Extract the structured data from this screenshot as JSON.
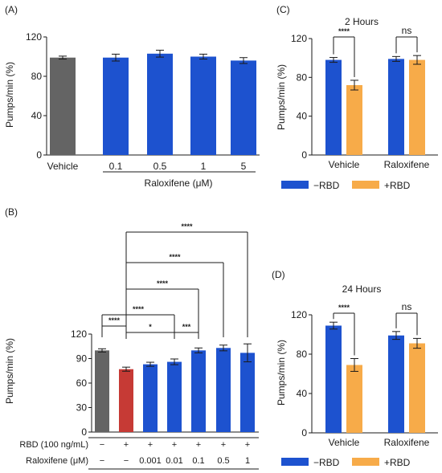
{
  "colors": {
    "vehicle_gray": "#646464",
    "rbd_red": "#c63a35",
    "blue": "#1d52cf",
    "orange": "#f7ab49",
    "axis": "#1a1a1a"
  },
  "chart_data": [
    {
      "id": "A",
      "panel_label": "(A)",
      "type": "bar",
      "ylabel": "Pumps/min (%)",
      "ylim": [
        0,
        120
      ],
      "yticks": [
        "0",
        "40",
        "80",
        "120"
      ],
      "categories": [
        "Vehicle",
        "0.1",
        "0.5",
        "1",
        "5"
      ],
      "values": [
        99,
        99,
        103,
        100,
        96
      ],
      "errors": [
        1.5,
        3.5,
        3.5,
        2.5,
        3
      ],
      "bar_colors": [
        "gray",
        "blue",
        "blue",
        "blue",
        "blue"
      ],
      "group_label": "Raloxifene (μM)"
    },
    {
      "id": "B",
      "panel_label": "(B)",
      "type": "bar",
      "ylabel": "Pumps/min (%)",
      "ylim": [
        0,
        120
      ],
      "yticks": [
        "0",
        "30",
        "60",
        "90",
        "120"
      ],
      "values": [
        100,
        77,
        83,
        86,
        100,
        103,
        97
      ],
      "errors": [
        2,
        2.5,
        2.5,
        3.5,
        3,
        3.5,
        11
      ],
      "bar_colors": [
        "gray",
        "red",
        "blue",
        "blue",
        "blue",
        "blue",
        "blue"
      ],
      "rows": [
        {
          "label": "RBD (100 ng/mL)",
          "cells": [
            "−",
            "+",
            "+",
            "+",
            "+",
            "+",
            "+"
          ]
        },
        {
          "label": "Raloxifene (μM)",
          "cells": [
            "−",
            "−",
            "0.001",
            "0.01",
            "0.1",
            "0.5",
            "1"
          ]
        }
      ],
      "significance": [
        {
          "from": 0,
          "to": 1,
          "label": "****"
        },
        {
          "from": 1,
          "to": 3,
          "label": "*"
        },
        {
          "from": 3,
          "to": 4,
          "label": "***"
        },
        {
          "from": 0,
          "to": 3,
          "label": "****"
        },
        {
          "from": 1,
          "to": 4,
          "label": "****"
        },
        {
          "from": 1,
          "to": 5,
          "label": "****"
        },
        {
          "from": 1,
          "to": 6,
          "label": "****"
        }
      ]
    },
    {
      "id": "C",
      "panel_label": "(C)",
      "type": "bar",
      "title": "2 Hours",
      "ylabel": "Pumps/min (%)",
      "ylim": [
        0,
        120
      ],
      "yticks": [
        "0",
        "40",
        "80",
        "120"
      ],
      "categories": [
        "Vehicle",
        "Raloxifene"
      ],
      "series": [
        {
          "name": "−RBD",
          "color": "blue",
          "values": [
            98,
            99
          ],
          "errors": [
            2.5,
            2.5
          ]
        },
        {
          "name": "+RBD",
          "color": "orange",
          "values": [
            72,
            98
          ],
          "errors": [
            5,
            4.5
          ]
        }
      ],
      "significance": [
        {
          "group": 0,
          "label": "****"
        },
        {
          "group": 1,
          "label": "ns"
        }
      ]
    },
    {
      "id": "D",
      "panel_label": "(D)",
      "type": "bar",
      "title": "24 Hours",
      "ylabel": "Pumps/min (%)",
      "ylim": [
        0,
        120
      ],
      "yticks": [
        "0",
        "40",
        "80",
        "120"
      ],
      "categories": [
        "Vehicle",
        "Raloxifene"
      ],
      "series": [
        {
          "name": "−RBD",
          "color": "blue",
          "values": [
            109,
            99
          ],
          "errors": [
            3.5,
            4
          ]
        },
        {
          "name": "+RBD",
          "color": "orange",
          "values": [
            69,
            91
          ],
          "errors": [
            6.5,
            5
          ]
        }
      ],
      "significance": [
        {
          "group": 0,
          "label": "****"
        },
        {
          "group": 1,
          "label": "ns"
        }
      ]
    }
  ]
}
